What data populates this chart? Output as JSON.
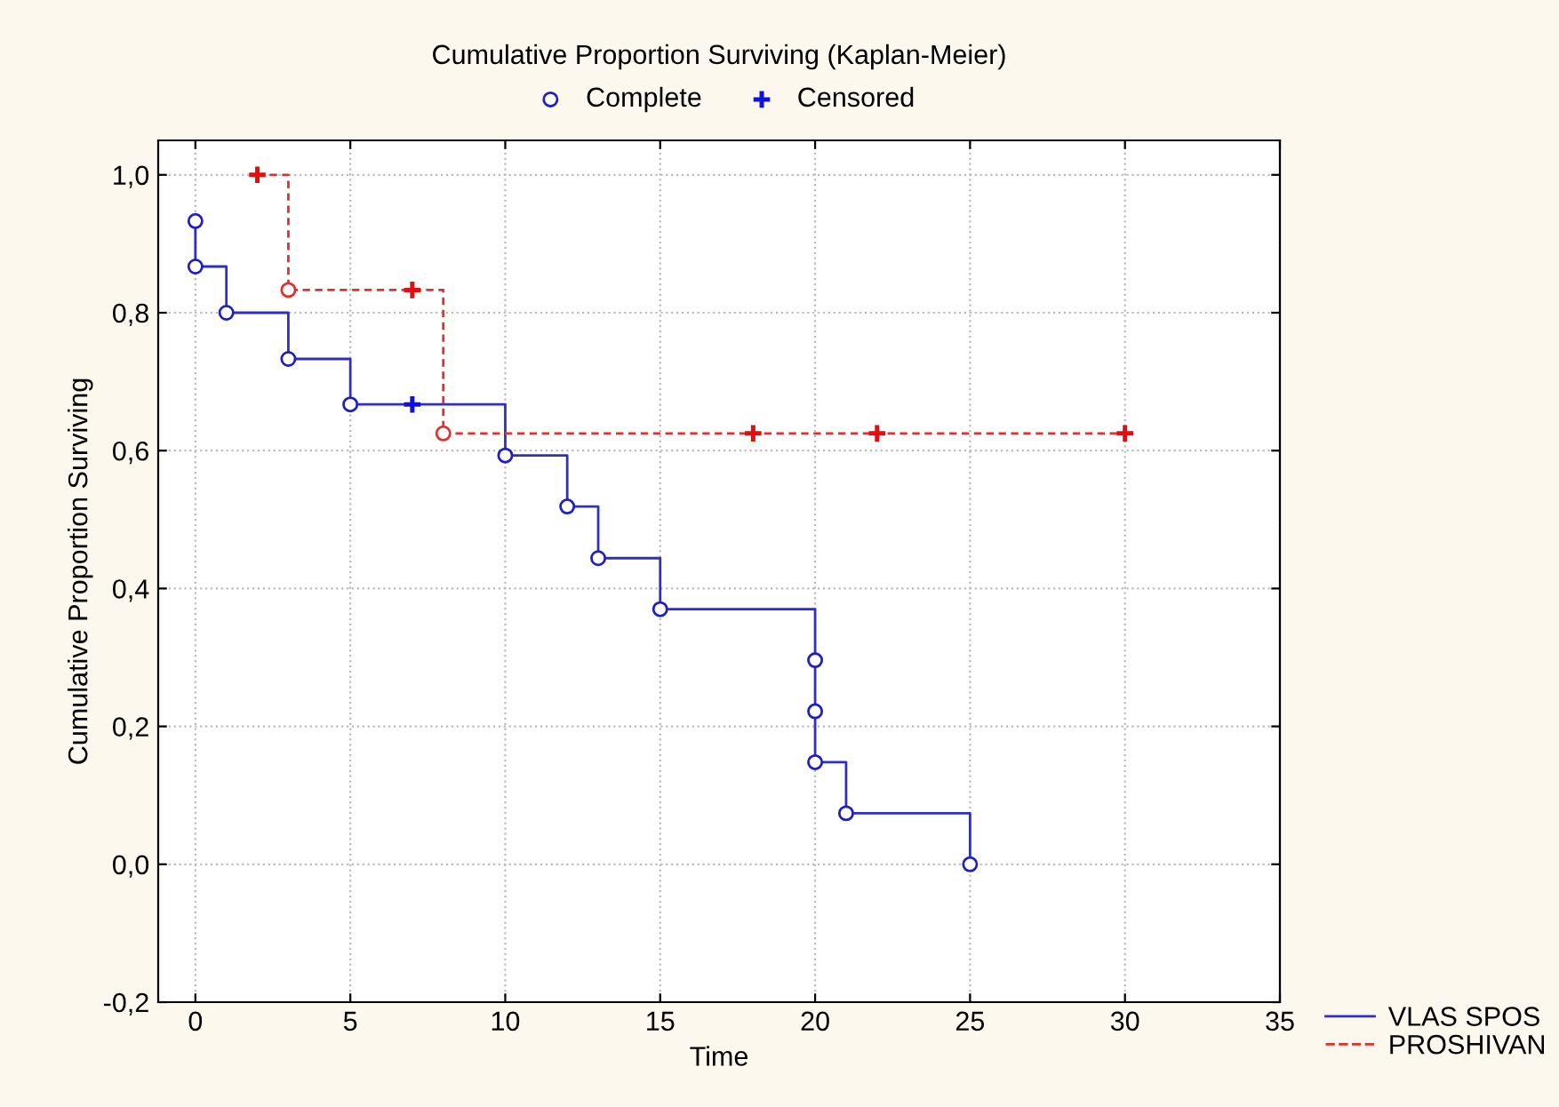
{
  "chart_data": {
    "type": "step",
    "title": "Cumulative Proportion Surviving (Kaplan-Meier)",
    "xlabel": "Time",
    "ylabel": "Cumulative Proportion Surviving",
    "series": [
      {
        "name": "VLAS SPOS",
        "color": "#3030c0",
        "line_style": "solid",
        "x": [
          0,
          0,
          1,
          3,
          5,
          7,
          10,
          12,
          13,
          15,
          20,
          20,
          20,
          21,
          25
        ],
        "values": [
          0.933,
          0.867,
          0.8,
          0.733,
          0.667,
          0.667,
          0.593,
          0.519,
          0.444,
          0.37,
          0.296,
          0.222,
          0.148,
          0.074,
          0.0
        ]
      },
      {
        "name": "PROSHIVAN",
        "color": "#e03030",
        "line_style": "dashed",
        "x": [
          2,
          3,
          7,
          8,
          18,
          22,
          30
        ],
        "values": [
          1.0,
          0.833,
          0.833,
          0.625,
          0.625,
          0.625,
          0.625
        ]
      },
      {
        "name": "Complete",
        "type": "scatter",
        "marker": "circle",
        "color": "#2020c0",
        "x": [
          0,
          0,
          1,
          3,
          5,
          10,
          12,
          13,
          15,
          20,
          20,
          20,
          21,
          25
        ],
        "values": [
          0.933,
          0.867,
          0.8,
          0.733,
          0.667,
          0.593,
          0.519,
          0.444,
          0.37,
          0.296,
          0.222,
          0.148,
          0.074,
          0.0
        ]
      },
      {
        "name": "Censored",
        "type": "scatter",
        "marker": "cross",
        "color": "#1010e0",
        "x": [
          7
        ],
        "values": [
          0.667
        ]
      },
      {
        "type": "scatter",
        "marker": "circle",
        "color": "#e03030",
        "x": [
          3,
          8
        ],
        "values": [
          0.833,
          0.625
        ]
      },
      {
        "type": "scatter",
        "marker": "cross",
        "color": "#e01010",
        "x": [
          2,
          7,
          18,
          22,
          30
        ],
        "values": [
          1.0,
          0.833,
          0.625,
          0.625,
          0.625
        ]
      }
    ],
    "xlim": [
      -1.2,
      35
    ],
    "xticks": [
      0,
      5,
      10,
      15,
      20,
      25,
      30,
      35
    ],
    "ylim": [
      -0.2,
      1.05
    ],
    "yticks": [
      {
        "value": -0.2,
        "label": "-0,2"
      },
      {
        "value": 0.0,
        "label": "0,0"
      },
      {
        "value": 0.2,
        "label": "0,2"
      },
      {
        "value": 0.4,
        "label": "0,4"
      },
      {
        "value": 0.6,
        "label": "0,6"
      },
      {
        "value": 0.8,
        "label": "0,8"
      },
      {
        "value": 1.0,
        "label": "1,0"
      }
    ],
    "grid": true,
    "legend": "top"
  }
}
